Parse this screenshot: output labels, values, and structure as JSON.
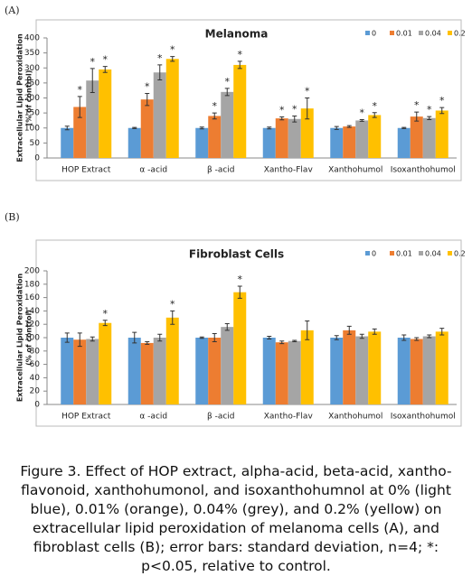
{
  "chart_data": [
    {
      "type": "bar",
      "panel_label": "(A)",
      "title": "Melanoma",
      "y_label": [
        "Extracellular Lipid Peroxidation",
        "(% of control)"
      ],
      "categories": [
        "HOP Extract",
        "α -acid",
        "β -acid",
        "Xantho-Flav",
        "Xanthohumol",
        "Isoxanthohumol"
      ],
      "ylim": [
        0,
        400
      ],
      "yticks": [
        0,
        50,
        100,
        150,
        200,
        250,
        300,
        350,
        400
      ],
      "legend": "top-right",
      "series": [
        {
          "name": "0",
          "color": "#5b9bd5",
          "values": [
            100,
            100,
            100,
            100,
            100,
            100
          ],
          "errors": [
            6,
            2,
            3,
            3,
            5,
            2
          ],
          "markers": [
            null,
            null,
            null,
            null,
            null,
            null
          ]
        },
        {
          "name": "0.01",
          "color": "#ed7d31",
          "values": [
            170,
            195,
            140,
            132,
            105,
            138
          ],
          "errors": [
            35,
            20,
            10,
            5,
            3,
            15
          ],
          "markers": [
            "*",
            "*",
            "*",
            "*",
            null,
            "*"
          ]
        },
        {
          "name": "0.04",
          "color": "#a5a5a5",
          "values": [
            258,
            285,
            220,
            130,
            125,
            133
          ],
          "errors": [
            40,
            25,
            12,
            10,
            3,
            5
          ],
          "markers": [
            "*",
            "*",
            "*",
            "*",
            "*",
            "*"
          ]
        },
        {
          "name": "0.2",
          "color": "#ffc000",
          "values": [
            295,
            330,
            310,
            165,
            143,
            158
          ],
          "errors": [
            10,
            8,
            12,
            35,
            8,
            10
          ],
          "markers": [
            "*",
            "*",
            "*",
            "*",
            "*",
            "*"
          ]
        }
      ]
    },
    {
      "type": "bar",
      "panel_label": "(B)",
      "title": "Fibroblast Cells",
      "y_label": [
        "Extracellular Lipid Peroxidation",
        "(% of control)"
      ],
      "categories": [
        "HOP Extract",
        "α -acid",
        "β -acid",
        "Xantho-Flav",
        "Xanthohumol",
        "Isoxanthohumol"
      ],
      "ylim": [
        0,
        200
      ],
      "yticks": [
        0,
        20,
        40,
        60,
        80,
        100,
        120,
        140,
        160,
        180,
        200
      ],
      "legend": "top-right",
      "series": [
        {
          "name": "0",
          "color": "#5b9bd5",
          "values": [
            100,
            100,
            100,
            100,
            100,
            100
          ],
          "errors": [
            7,
            8,
            1,
            2,
            3,
            4
          ],
          "markers": [
            null,
            null,
            null,
            null,
            null,
            null
          ]
        },
        {
          "name": "0.01",
          "color": "#ed7d31",
          "values": [
            97,
            92,
            100,
            93,
            111,
            98
          ],
          "errors": [
            10,
            2,
            6,
            2,
            6,
            2
          ],
          "markers": [
            null,
            null,
            null,
            null,
            null,
            null
          ]
        },
        {
          "name": "0.04",
          "color": "#a5a5a5",
          "values": [
            98,
            100,
            116,
            95,
            102,
            102
          ],
          "errors": [
            3,
            5,
            5,
            1,
            3,
            2
          ],
          "markers": [
            null,
            null,
            null,
            null,
            null,
            null
          ]
        },
        {
          "name": "0.2",
          "color": "#ffc000",
          "values": [
            122,
            130,
            168,
            111,
            109,
            109
          ],
          "errors": [
            4,
            10,
            9,
            14,
            4,
            5
          ],
          "markers": [
            "*",
            "*",
            "*",
            null,
            null,
            null
          ]
        }
      ]
    }
  ],
  "caption": "Figure 3. Effect of HOP extract, alpha-acid, beta-acid, xantho-flavonoid, xanthohumonol, and isoxanthohumnol at 0% (light blue), 0.01% (orange), 0.04% (grey), and 0.2% (yellow) on extracellular lipid peroxidation of melanoma cells (A), and fibroblast cells (B); error bars: standard deviation, n=4; *: p<0.05, relative to control."
}
